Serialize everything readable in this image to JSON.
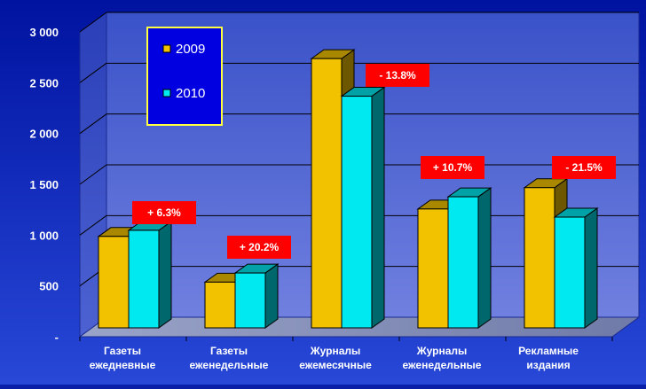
{
  "chart_data": {
    "type": "bar",
    "title": "",
    "xlabel": "",
    "ylabel": "",
    "ylim": [
      0,
      3000
    ],
    "yticks": [
      {
        "value": 0,
        "label": "-"
      },
      {
        "value": 500,
        "label": "500"
      },
      {
        "value": 1000,
        "label": "1 000"
      },
      {
        "value": 1500,
        "label": "1 500"
      },
      {
        "value": 2000,
        "label": "2 000"
      },
      {
        "value": 2500,
        "label": "2 500"
      },
      {
        "value": 3000,
        "label": "3 000"
      }
    ],
    "categories": [
      [
        "Газеты",
        "ежедневные"
      ],
      [
        "Газеты",
        "еженедельные"
      ],
      [
        "Журналы",
        "ежемесячные"
      ],
      [
        "Журналы",
        "еженедельные"
      ],
      [
        "Рекламные",
        "издания"
      ]
    ],
    "series": [
      {
        "name": "2009",
        "values": [
          900,
          450,
          2650,
          1170,
          1380
        ],
        "color": "#f2c200"
      },
      {
        "name": "2010",
        "values": [
          960,
          540,
          2280,
          1290,
          1090
        ],
        "color": "#00e8f0"
      }
    ],
    "annotations": [
      "+ 6.3%",
      "+ 20.2%",
      "- 13.8%",
      "+ 10.7%",
      "- 21.5%"
    ],
    "grid": true,
    "legend_position": "top-left",
    "colors": {
      "background": "#0a1fa8",
      "wall": "#5b6fd6",
      "floor": "#7f8bb5",
      "label_box": "#ff0000",
      "legend_bg": "#0000e0",
      "legend_border": "#ffff40"
    }
  }
}
